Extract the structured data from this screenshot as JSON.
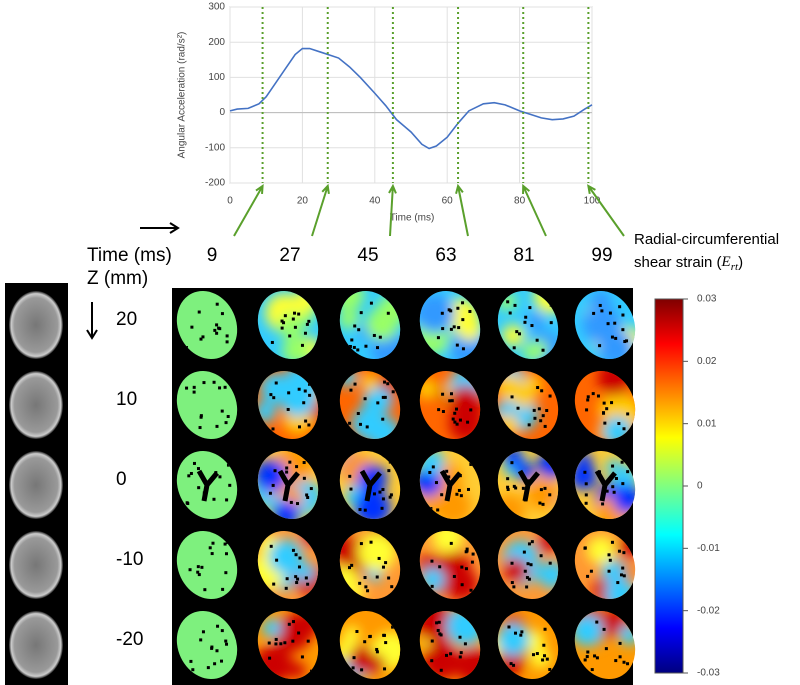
{
  "chart_data": {
    "type": "line",
    "x_label": "Time (ms)",
    "y_label": "Angular Acceleration (rad/s²)",
    "x": [
      0,
      2,
      5,
      8,
      10,
      12,
      15,
      18,
      20,
      22,
      25,
      28,
      30,
      33,
      36,
      40,
      43,
      46,
      50,
      53,
      55,
      57,
      60,
      63,
      66,
      70,
      73,
      76,
      80,
      83,
      86,
      89,
      92,
      95,
      98,
      100
    ],
    "series": [
      {
        "color": "#4472c4",
        "values": [
          5,
          10,
          12,
          25,
          45,
          75,
          120,
          165,
          182,
          182,
          172,
          162,
          155,
          130,
          100,
          55,
          20,
          -20,
          -55,
          -90,
          -102,
          -95,
          -70,
          -30,
          5,
          25,
          28,
          22,
          5,
          -5,
          -15,
          -20,
          -18,
          -10,
          10,
          22
        ]
      }
    ],
    "xlim": [
      0,
      100
    ],
    "xticks": [
      0,
      20,
      40,
      60,
      80,
      100
    ],
    "ylim": [
      -200,
      300
    ],
    "yticks": [
      -200,
      -100,
      0,
      100,
      200,
      300
    ],
    "grid": true,
    "markers": [
      9,
      27,
      45,
      63,
      81,
      99
    ],
    "marker_color": "#5aa02c"
  },
  "time_label": "Time (ms)",
  "z_label": "Z (mm)",
  "z_values": [
    20,
    10,
    0,
    -10,
    -20
  ],
  "colorbar": {
    "label_lines": [
      "Radial-circumferential",
      "shear strain"
    ],
    "brackets": [
      "(",
      ")"
    ],
    "symbol": "E",
    "symbol_subscript": "rt",
    "lim": [
      -0.03,
      0.03
    ],
    "ticks": [
      0.03,
      0.02,
      0.01,
      0,
      -0.01,
      -0.02,
      -0.03
    ]
  }
}
